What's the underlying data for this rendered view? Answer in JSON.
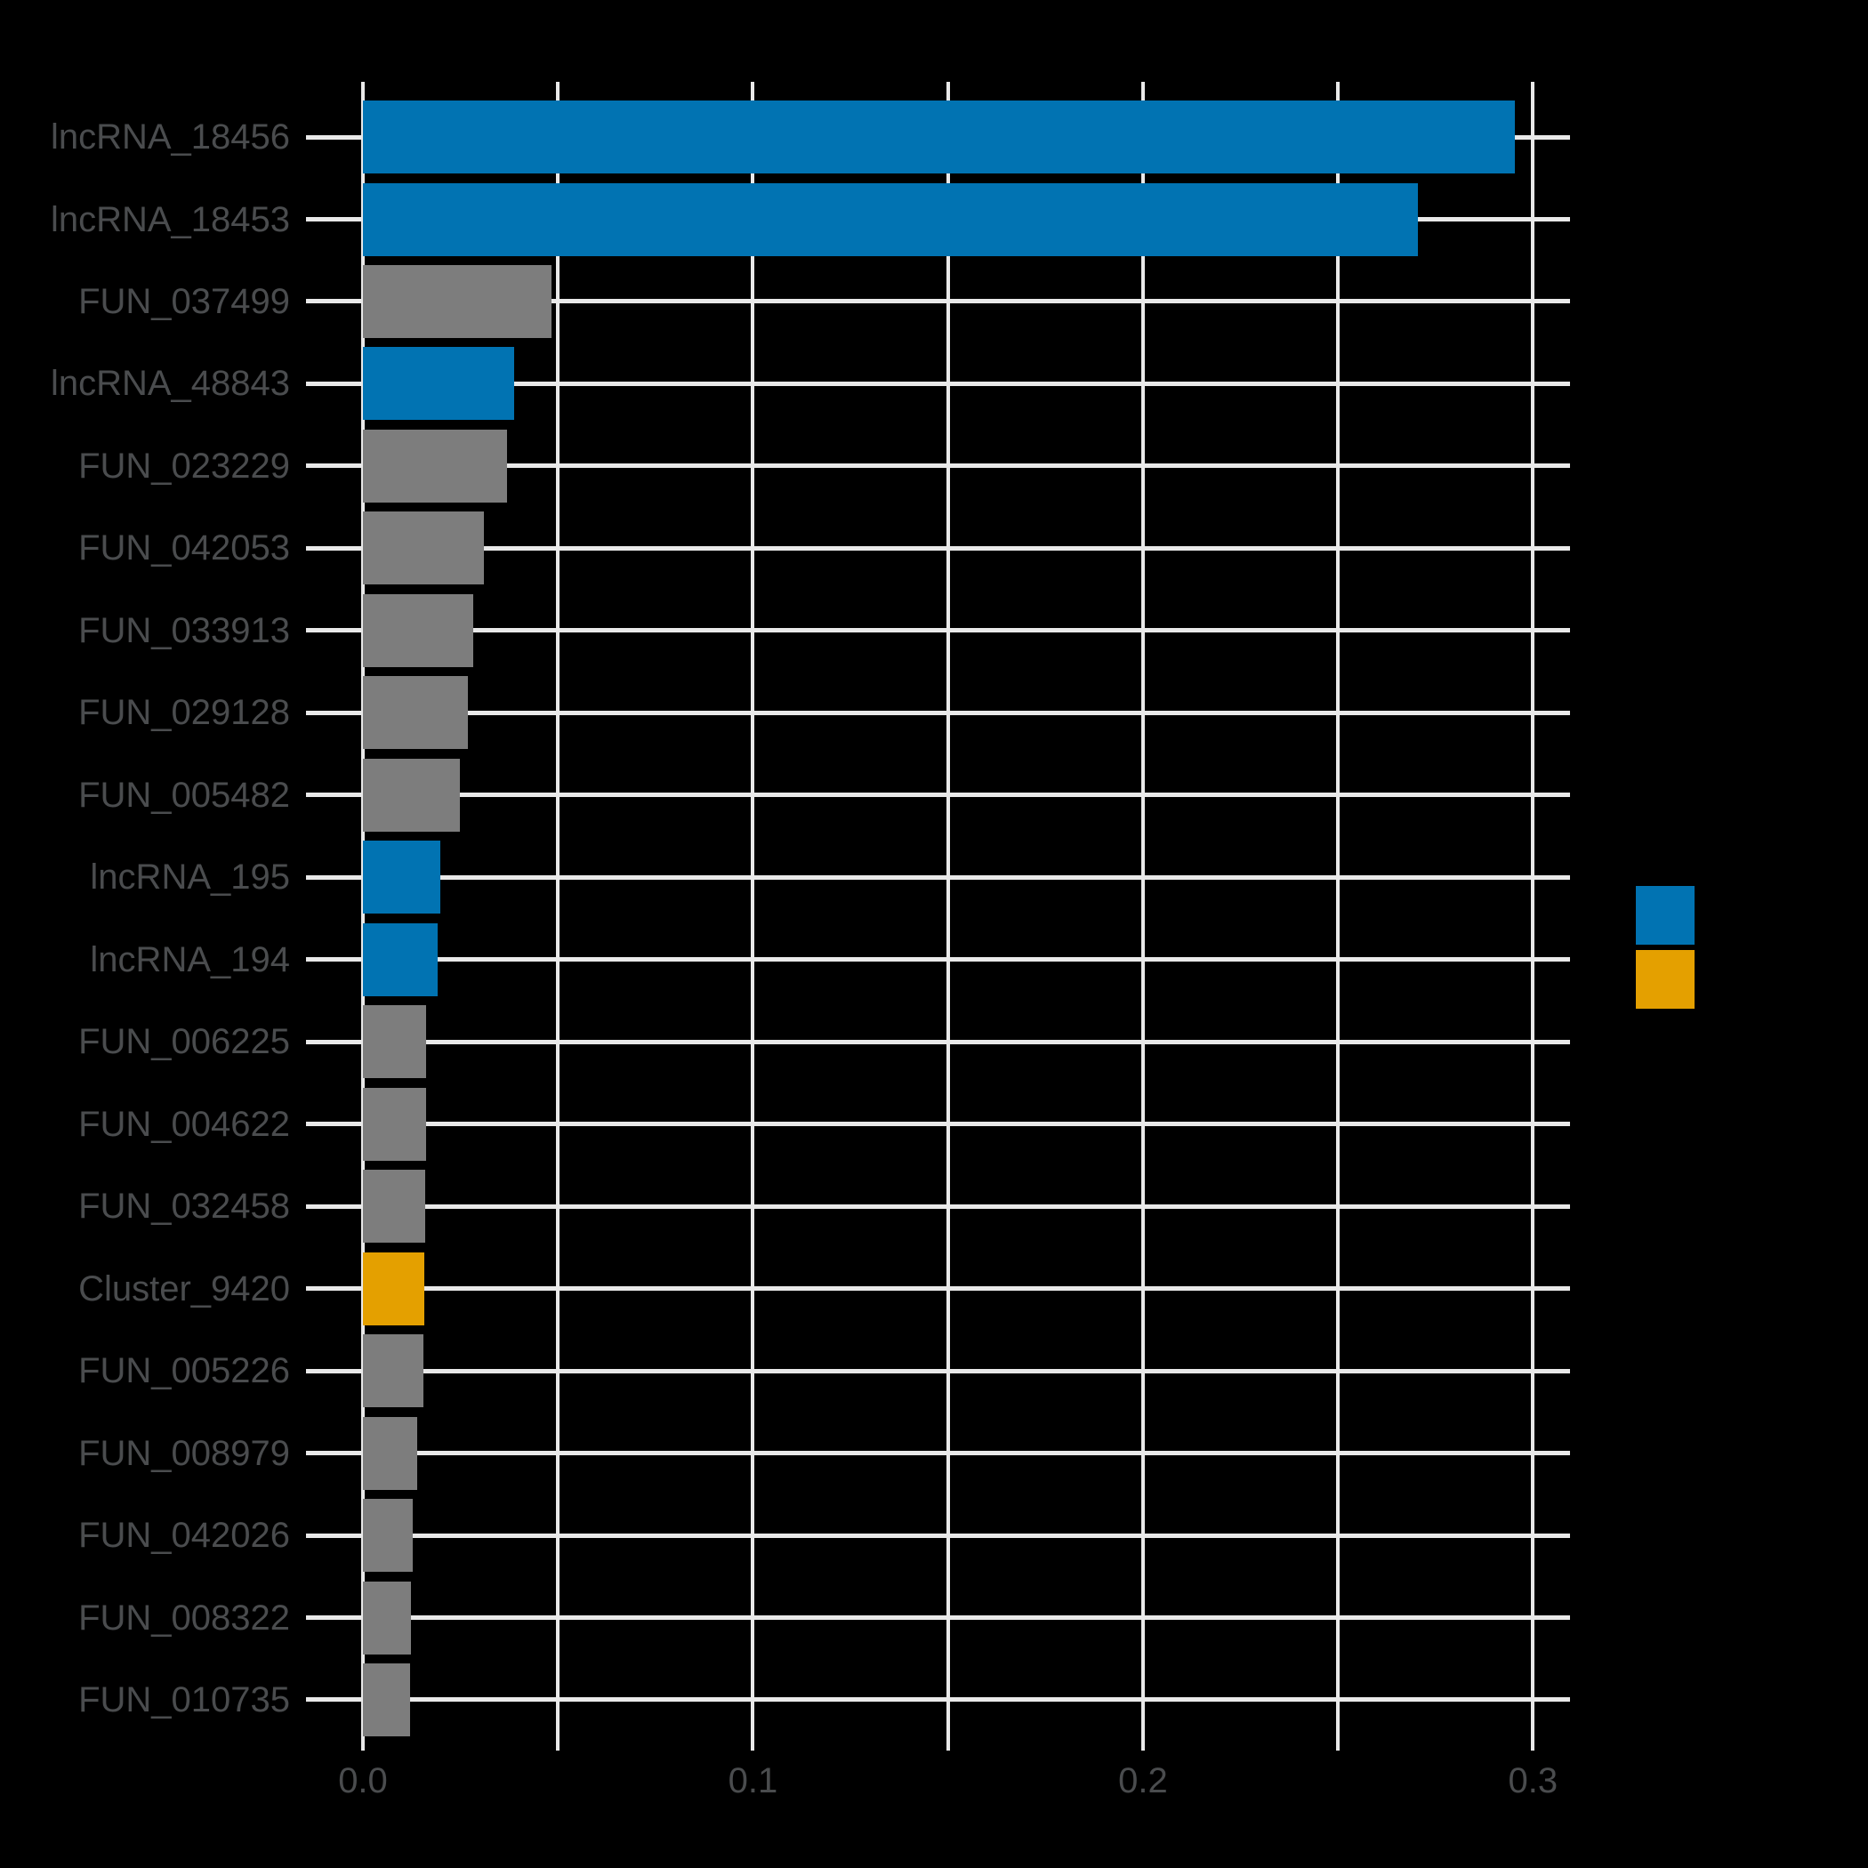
{
  "style": {
    "background": "#000000",
    "grid_color": "#E9E9E9",
    "text_color": "#4A4C4E",
    "bar_blue": "#0173B2",
    "bar_gray": "#7D7D7D",
    "bar_orange": "#E4A000"
  },
  "chart_data": {
    "type": "bar",
    "orientation": "horizontal",
    "title": "",
    "xlabel": "",
    "ylabel": "",
    "categories": [
      "lncRNA_18456",
      "lncRNA_18453",
      "FUN_037499",
      "lncRNA_48843",
      "FUN_023229",
      "FUN_042053",
      "FUN_033913",
      "FUN_029128",
      "FUN_005482",
      "lncRNA_195",
      "lncRNA_194",
      "FUN_006225",
      "FUN_004622",
      "FUN_032458",
      "Cluster_9420",
      "FUN_005226",
      "FUN_008979",
      "FUN_042026",
      "FUN_008322",
      "FUN_010735"
    ],
    "values": [
      0.2953,
      0.2704,
      0.0484,
      0.0387,
      0.0369,
      0.0311,
      0.0282,
      0.0268,
      0.0248,
      0.0198,
      0.0192,
      0.0161,
      0.0161,
      0.016,
      0.0157,
      0.0155,
      0.014,
      0.0128,
      0.0122,
      0.012
    ],
    "groups": [
      "lncRNA",
      "lncRNA",
      "FUN",
      "lncRNA",
      "FUN",
      "FUN",
      "FUN",
      "FUN",
      "FUN",
      "lncRNA",
      "lncRNA",
      "FUN",
      "FUN",
      "FUN",
      "Cluster",
      "FUN",
      "FUN",
      "FUN",
      "FUN",
      "FUN"
    ],
    "group_colors": {
      "lncRNA": "#0173B2",
      "FUN": "#7D7D7D",
      "Cluster": "#E4A000"
    },
    "xlim": [
      0,
      0.3095
    ],
    "grid_values": [
      0,
      0.05,
      0.1,
      0.15,
      0.2,
      0.25,
      0.3
    ],
    "x_tick_labels": [
      {
        "value": 0.0,
        "label": "0.0"
      },
      {
        "value": 0.1,
        "label": "0.1"
      },
      {
        "value": 0.2,
        "label": "0.2"
      },
      {
        "value": 0.3,
        "label": "0.3"
      }
    ],
    "grid": true,
    "legend_position": "center-right"
  },
  "legend": {
    "entries": [
      {
        "label": "",
        "color": "#0173B2"
      },
      {
        "label": "",
        "color": "#E4A000"
      }
    ]
  }
}
